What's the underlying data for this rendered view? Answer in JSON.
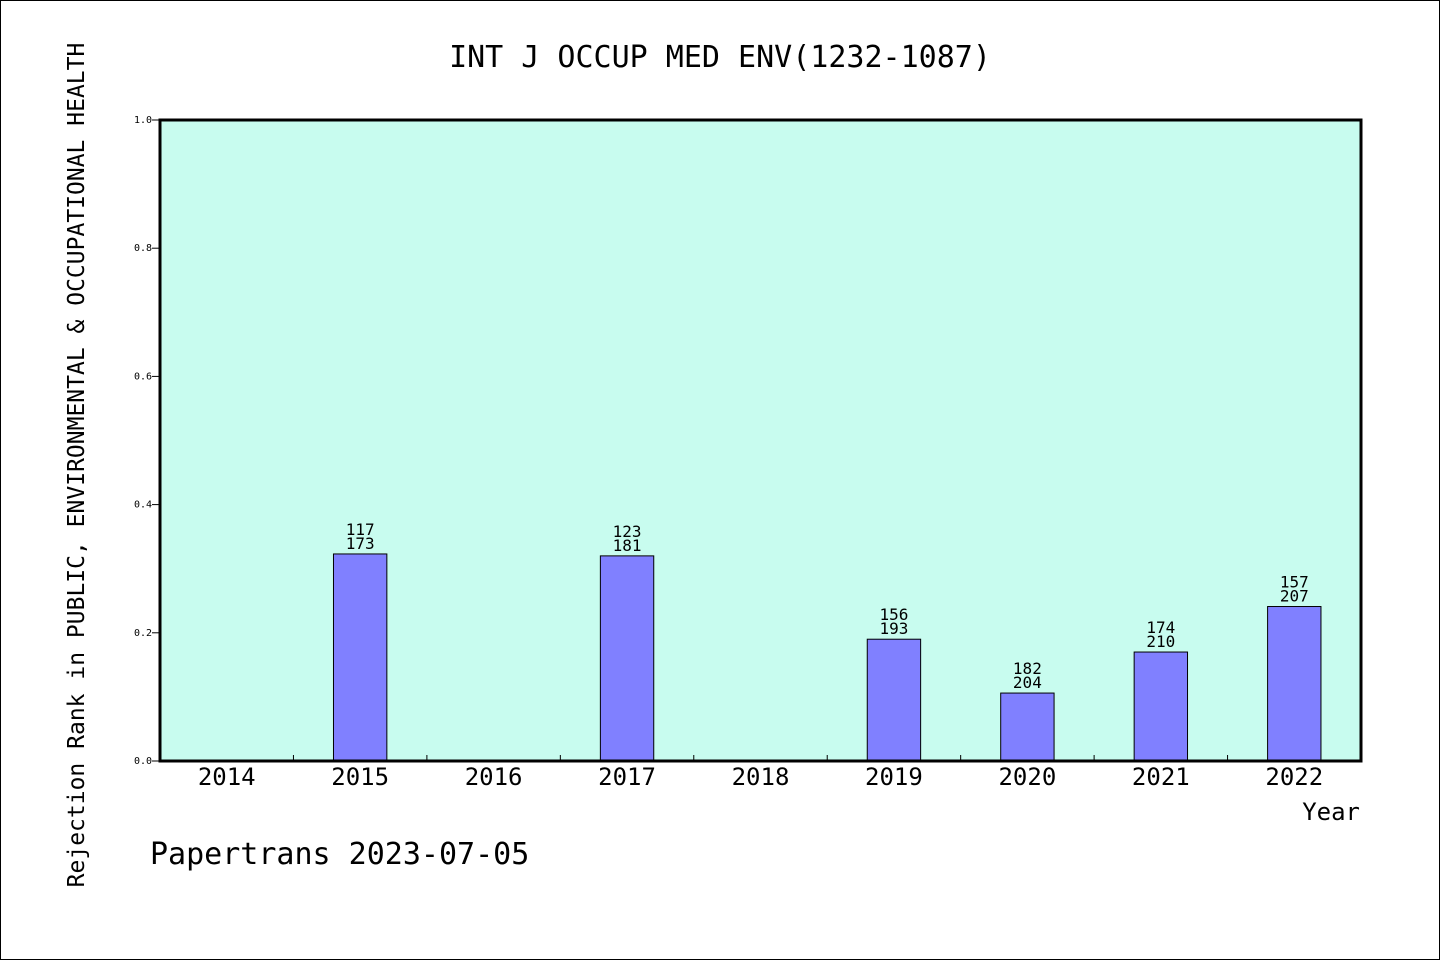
{
  "chart_data": {
    "type": "bar",
    "title": "INT J OCCUP MED ENV(1232-1087)",
    "ylabel": "Rejection Rank in PUBLIC, ENVIRONMENTAL & OCCUPATIONAL HEALTH",
    "xlabel": "Year",
    "footer": "Papertrans 2023-07-05",
    "ylim": [
      0,
      1.0
    ],
    "yticks": [
      "0.0",
      "0.2",
      "0.4",
      "0.6",
      "0.8",
      "1.0"
    ],
    "categories": [
      "2014",
      "2015",
      "2016",
      "2017",
      "2018",
      "2019",
      "2020",
      "2021",
      "2022"
    ],
    "values": [
      null,
      0.323,
      null,
      0.32,
      null,
      0.19,
      0.106,
      0.17,
      0.241
    ],
    "labels_top": [
      null,
      "117",
      null,
      "123",
      null,
      "156",
      "182",
      "174",
      "157"
    ],
    "labels_bottom": [
      null,
      "173",
      null,
      "181",
      null,
      "193",
      "204",
      "210",
      "207"
    ],
    "grid": false,
    "colors": {
      "plot_background": "#c8fcef",
      "bar_fill": "#8080ff",
      "bar_stroke": "#000000"
    }
  }
}
